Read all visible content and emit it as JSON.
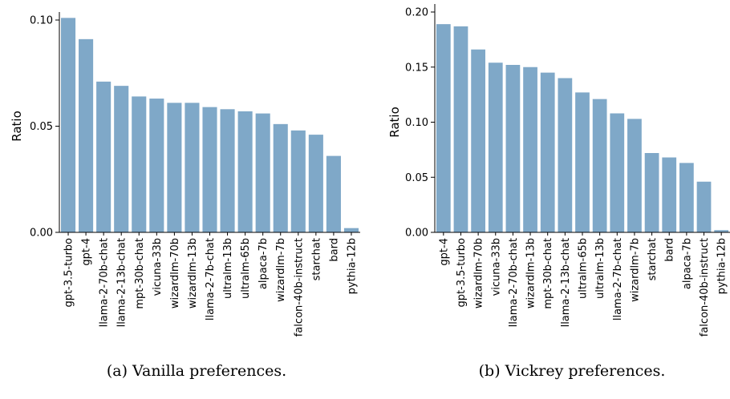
{
  "chart_data": [
    {
      "type": "bar",
      "caption": "(a) Vanilla preferences.",
      "ylabel": "Ratio",
      "ylim": [
        0,
        0.1
      ],
      "yticks": [
        "0.00",
        "0.05",
        "0.10"
      ],
      "bar_color": "#7fa8c8",
      "categories": [
        "gpt-3.5-turbo",
        "gpt-4",
        "llama-2-70b-chat",
        "llama-2-13b-chat",
        "mpt-30b-chat",
        "vicuna-33b",
        "wizardlm-70b",
        "wizardlm-13b",
        "llama-2-7b-chat",
        "ultralm-13b",
        "ultralm-65b",
        "alpaca-7b",
        "wizardlm-7b",
        "falcon-40b-instruct",
        "starchat",
        "bard",
        "pythia-12b"
      ],
      "values": [
        0.101,
        0.091,
        0.071,
        0.069,
        0.064,
        0.063,
        0.061,
        0.061,
        0.059,
        0.058,
        0.057,
        0.056,
        0.051,
        0.048,
        0.046,
        0.036,
        0.002
      ]
    },
    {
      "type": "bar",
      "caption": "(b) Vickrey preferences.",
      "ylabel": "Ratio",
      "ylim": [
        0,
        0.2
      ],
      "yticks": [
        "0.00",
        "0.05",
        "0.10",
        "0.15",
        "0.20"
      ],
      "bar_color": "#7fa8c8",
      "categories": [
        "gpt-4",
        "gpt-3.5-turbo",
        "wizardlm-70b",
        "vicuna-33b",
        "llama-2-70b-chat",
        "wizardlm-13b",
        "mpt-30b-chat",
        "llama-2-13b-chat",
        "ultralm-65b",
        "ultralm-13b",
        "llama-2-7b-chat",
        "wizardlm-7b",
        "starchat",
        "bard",
        "alpaca-7b",
        "falcon-40b-instruct",
        "pythia-12b"
      ],
      "values": [
        0.189,
        0.187,
        0.166,
        0.154,
        0.152,
        0.15,
        0.145,
        0.14,
        0.127,
        0.121,
        0.108,
        0.103,
        0.072,
        0.068,
        0.063,
        0.046,
        0.002
      ]
    }
  ]
}
